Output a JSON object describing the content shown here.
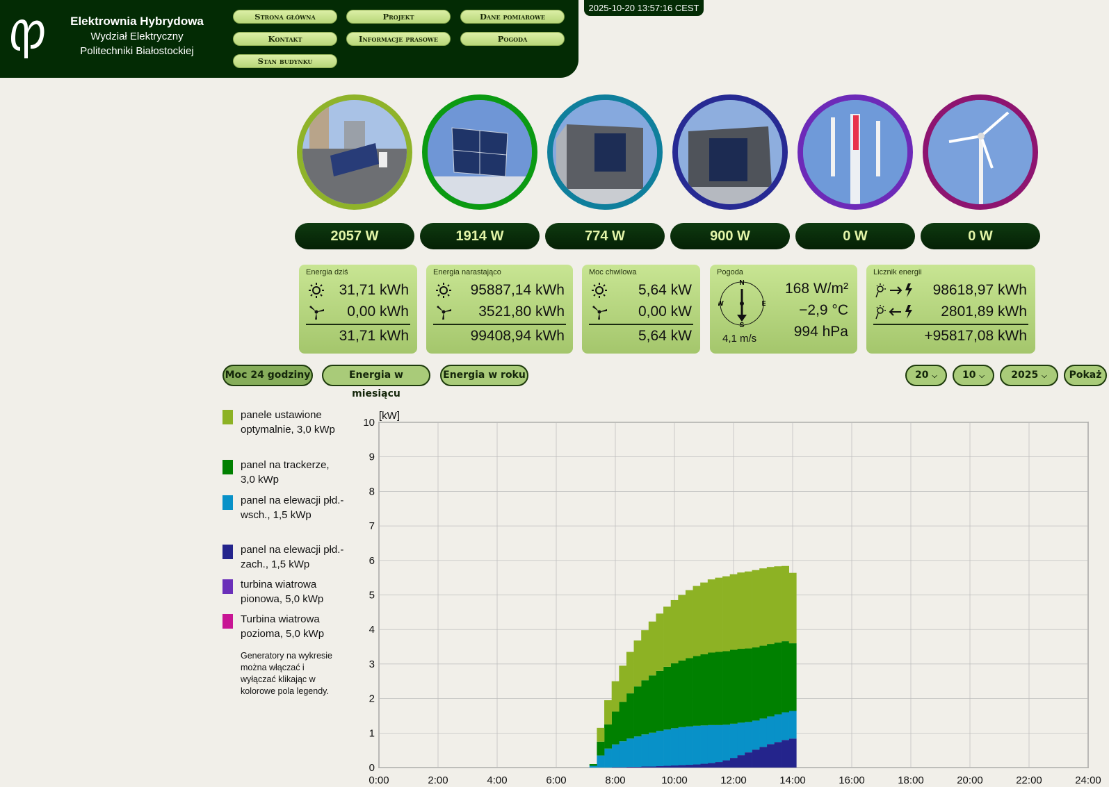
{
  "header": {
    "title": "Elektrownia Hybrydowa",
    "subtitle1": "Wydział Elektryczny",
    "subtitle2": "Politechniki Białostockiej",
    "logo_icon": "pb-logo-icon"
  },
  "nav": [
    "Strona główna",
    "Projekt",
    "Dane pomiarowe",
    "Kontakt",
    "Informacje prasowe",
    "Pogoda",
    "Stan budynku"
  ],
  "clock": "2025-10-20 13:57:16 CEST",
  "generators": [
    {
      "name": "panele ustawione optymalnie",
      "power": "2057 W",
      "color": "#8fb32a"
    },
    {
      "name": "panel na trackerze",
      "power": "1914 W",
      "color": "#0b9a12"
    },
    {
      "name": "panel na elewacji płd.-wsch.",
      "power": "774 W",
      "color": "#0f7f9c"
    },
    {
      "name": "panel na elewacji płd.-zach.",
      "power": "900 W",
      "color": "#272a93"
    },
    {
      "name": "turbina wiatrowa pionowa",
      "power": "0 W",
      "color": "#6d2ab8"
    },
    {
      "name": "turbina wiatrowa pozioma",
      "power": "0 W",
      "color": "#8e1470"
    }
  ],
  "stats": {
    "energy_today": {
      "title": "Energia dziś",
      "solar": "31,71 kWh",
      "wind": "0,00 kWh",
      "total": "31,71 kWh"
    },
    "energy_cumulative": {
      "title": "Energia narastająco",
      "solar": "95887,14 kWh",
      "wind": "3521,80 kWh",
      "total": "99408,94 kWh"
    },
    "power_now": {
      "title": "Moc chwilowa",
      "solar": "5,64 kW",
      "wind": "0,00 kW",
      "total": "5,64 kW"
    },
    "weather": {
      "title": "Pogoda",
      "irradiance": "168 W/m²",
      "temperature": "−2,9 °C",
      "pressure": "994 hPa",
      "wind_speed": "4,1 m/s",
      "compass": [
        "N",
        "E",
        "S",
        "W"
      ]
    },
    "meter": {
      "title": "Licznik energii",
      "export": "98618,97 kWh",
      "import": "2801,89 kWh",
      "balance": "+95817,08 kWh"
    }
  },
  "tabs": [
    "Moc 24 godziny",
    "Energia w miesiącu",
    "Energia w roku"
  ],
  "date_select": {
    "day": "20",
    "month": "10",
    "year": "2025",
    "show_label": "Pokaż"
  },
  "legend": [
    {
      "label": "panele ustawione optymalnie, 3,0 kWp",
      "color": "#8db224"
    },
    {
      "label": "panel na trackerze, 3,0 kWp",
      "color": "#008000"
    },
    {
      "label": "panel na elewacji płd.-wsch., 1,5 kWp",
      "color": "#0891c8"
    },
    {
      "label": "panel na elewacji płd.-zach., 1,5 kWp",
      "color": "#24248c"
    },
    {
      "label": "turbina wiatrowa pionowa, 5,0 kWp",
      "color": "#6a2fb9"
    },
    {
      "label": "Turbina wiatrowa pozioma, 5,0 kWp",
      "color": "#c81594"
    }
  ],
  "legend_note": "Generatory na wykresie można włączać i wyłączać klikając w kolorowe pola legendy.",
  "chart_data": {
    "type": "area",
    "stacked": true,
    "ylabel": "[kW]",
    "ylim": [
      0,
      10
    ],
    "yticks": [
      0,
      1,
      2,
      3,
      4,
      5,
      6,
      7,
      8,
      9,
      10
    ],
    "xlim": [
      0,
      24
    ],
    "xticks": [
      "0:00",
      "2:00",
      "4:00",
      "6:00",
      "8:00",
      "10:00",
      "12:00",
      "14:00",
      "16:00",
      "18:00",
      "20:00",
      "22:00",
      "24:00"
    ],
    "grid": true,
    "x": [
      7.25,
      7.5,
      7.75,
      8.0,
      8.25,
      8.5,
      8.75,
      9.0,
      9.25,
      9.5,
      9.75,
      10.0,
      10.25,
      10.5,
      10.75,
      11.0,
      11.25,
      11.5,
      11.75,
      12.0,
      12.25,
      12.5,
      12.75,
      13.0,
      13.25,
      13.5,
      13.75,
      14.0
    ],
    "series": [
      {
        "name": "panel na elewacji płd.-zach., 1,5 kWp",
        "color": "#24248c",
        "values": [
          0.0,
          0.0,
          0.0,
          0.01,
          0.01,
          0.02,
          0.02,
          0.03,
          0.03,
          0.04,
          0.05,
          0.06,
          0.07,
          0.08,
          0.09,
          0.11,
          0.13,
          0.16,
          0.21,
          0.28,
          0.36,
          0.44,
          0.52,
          0.6,
          0.68,
          0.74,
          0.8,
          0.84
        ]
      },
      {
        "name": "panel na elewacji płd.-wsch., 1,5 kWp",
        "color": "#0891c8",
        "values": [
          0.05,
          0.35,
          0.55,
          0.66,
          0.75,
          0.82,
          0.88,
          0.93,
          0.98,
          1.02,
          1.05,
          1.08,
          1.1,
          1.11,
          1.12,
          1.11,
          1.1,
          1.07,
          1.03,
          0.99,
          0.94,
          0.88,
          0.84,
          0.82,
          0.8,
          0.8,
          0.8,
          0.8
        ]
      },
      {
        "name": "panel na trackerze, 3,0 kWp",
        "color": "#008000",
        "values": [
          0.05,
          0.4,
          0.7,
          0.95,
          1.14,
          1.31,
          1.45,
          1.57,
          1.66,
          1.74,
          1.82,
          1.88,
          1.93,
          1.98,
          2.02,
          2.06,
          2.1,
          2.12,
          2.13,
          2.14,
          2.14,
          2.13,
          2.12,
          2.11,
          2.1,
          2.08,
          2.06,
          1.96
        ]
      },
      {
        "name": "panele ustawione optymalnie, 3,0 kWp",
        "color": "#8db224",
        "values": [
          0.0,
          0.4,
          0.7,
          0.88,
          1.05,
          1.2,
          1.33,
          1.45,
          1.56,
          1.66,
          1.74,
          1.83,
          1.9,
          1.97,
          2.03,
          2.08,
          2.12,
          2.15,
          2.17,
          2.19,
          2.21,
          2.23,
          2.24,
          2.24,
          2.23,
          2.21,
          2.18,
          2.04
        ]
      },
      {
        "name": "turbina wiatrowa pionowa, 5,0 kWp",
        "color": "#6a2fb9",
        "values": [
          0,
          0,
          0,
          0,
          0,
          0,
          0,
          0,
          0,
          0,
          0,
          0,
          0,
          0,
          0,
          0,
          0,
          0,
          0,
          0,
          0,
          0,
          0,
          0,
          0,
          0,
          0,
          0
        ]
      },
      {
        "name": "Turbina wiatrowa pozioma, 5,0 kWp",
        "color": "#c81594",
        "values": [
          0,
          0,
          0,
          0,
          0,
          0,
          0,
          0,
          0,
          0,
          0,
          0,
          0,
          0,
          0,
          0,
          0,
          0,
          0,
          0,
          0,
          0,
          0,
          0,
          0,
          0,
          0,
          0
        ]
      }
    ]
  }
}
